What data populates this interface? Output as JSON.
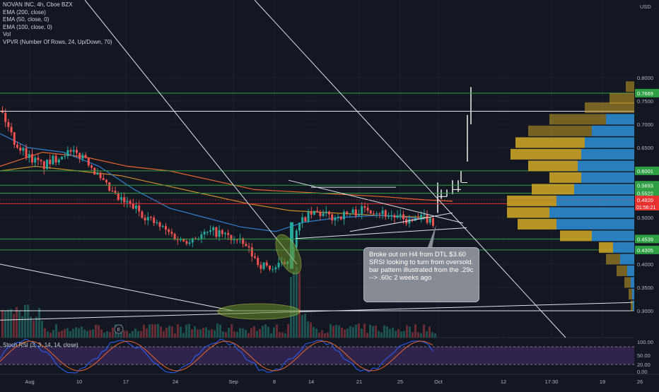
{
  "header": {
    "title": "NOVAN INC, 4h, Cboe BZX",
    "indicators": [
      "EMA (200, close)",
      "EMA (50, close, 0)",
      "EMA (100, close, 0)",
      "Vol",
      "VPVR (Number Of Rows, 24, Up/Down, 70)"
    ]
  },
  "price_axis": {
    "currency": "USD",
    "ticks": [
      "0.8000",
      "0.7500",
      "0.7000",
      "0.6500",
      "0.6000",
      "0.5500",
      "0.5000",
      "0.4500",
      "0.4000",
      "0.3500",
      "0.3000"
    ]
  },
  "price_levels": [
    {
      "label": "0.7669",
      "value": 0.7669,
      "color": "#2ea043"
    },
    {
      "label": "0.6001",
      "value": 0.6001,
      "color": "#2ea043"
    },
    {
      "label": "0.5693",
      "value": 0.5693,
      "color": "#2ea043"
    },
    {
      "label": "0.5522",
      "value": 0.5522,
      "color": "#2ea043"
    },
    {
      "label": "0.5297",
      "value": 0.5297,
      "color": "#e8322f"
    },
    {
      "label": "0.4539",
      "value": 0.4539,
      "color": "#2ea043"
    },
    {
      "label": "0.4305",
      "value": 0.4305,
      "color": "#2ea043"
    }
  ],
  "current_price": {
    "label": "0.4920",
    "countdown": "01:56:21",
    "color": "#e8322f"
  },
  "time_axis": {
    "ticks": [
      "Aug",
      "10",
      "17",
      "24",
      "Sep",
      "8",
      "14",
      "21",
      "25",
      "Oct",
      "12",
      "17:30",
      "19",
      "26"
    ]
  },
  "rsi": {
    "label": "Stoch RSI (3, 3, 14, 14, close)",
    "ticks": [
      "100.00",
      "50.00",
      "20.00",
      "0.00"
    ]
  },
  "annotation": {
    "text": "Broke out on H4 from DTL $3.60 SRSI looking to turn from oversold. bar pattern illustrated from the .29c --> .60c 2 weeks ago"
  },
  "colors": {
    "background": "#131722",
    "up": "#26a69a",
    "down": "#ef5350",
    "ema200": "#e8652c",
    "ema50": "#2f80d1",
    "ema100": "#c98a2a",
    "rsi_k": "#2962ff",
    "rsi_d": "#e8652c",
    "rsi_band": "#3b2a5c",
    "vpvr_up": "#2a85c7",
    "vpvr_down": "#c9a227"
  }
}
